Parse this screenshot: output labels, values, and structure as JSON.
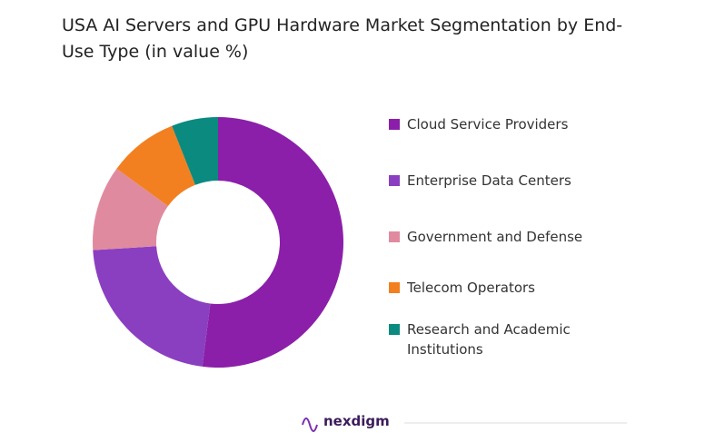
{
  "chart_data": {
    "type": "donut",
    "title": "USA AI Servers and GPU Hardware Market Segmentation by End-Use Type (in value %)",
    "categories": [
      "Cloud Service Providers",
      "Enterprise Data Centers",
      "Government and Defense",
      "Telecom Operators",
      "Research and Academic Institutions"
    ],
    "values": [
      52,
      22,
      11,
      9,
      6
    ],
    "colors": [
      "#8b1fa9",
      "#8a3fc0",
      "#e08aa0",
      "#f28020",
      "#0b8a80"
    ],
    "legend": "right"
  },
  "footer": {
    "brand": "nexdigm"
  }
}
